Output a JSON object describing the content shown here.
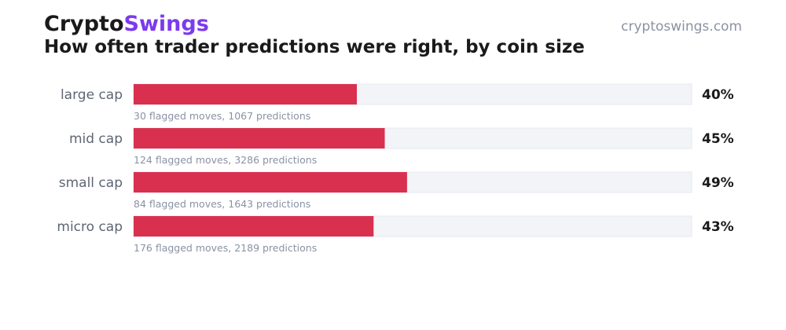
{
  "header": {
    "brand_part1": "Crypto",
    "brand_part2": "Swings",
    "brand_colors": {
      "primary": "#1a1a1a",
      "accent": "#7c3aed"
    },
    "domain": "cryptoswings.com",
    "title": "How often trader predictions were right, by coin size"
  },
  "chart_data": {
    "type": "bar",
    "orientation": "horizontal",
    "title": "How often trader predictions were right, by coin size",
    "categories": [
      "large cap",
      "mid cap",
      "small cap",
      "micro cap"
    ],
    "values": [
      40,
      45,
      49,
      43
    ],
    "value_labels": [
      "40%",
      "45%",
      "49%",
      "43%"
    ],
    "annotations": [
      "30 flagged moves, 1067 predictions",
      "124 flagged moves, 3286 predictions",
      "84 flagged moves, 1643 predictions",
      "176 flagged moves, 2189 predictions"
    ],
    "xlim": [
      0,
      100
    ],
    "grid": false,
    "legend": "none",
    "colors": {
      "bar": "#d93050",
      "track": "#f3f4f8",
      "track_border": "#e6e8f0"
    }
  }
}
